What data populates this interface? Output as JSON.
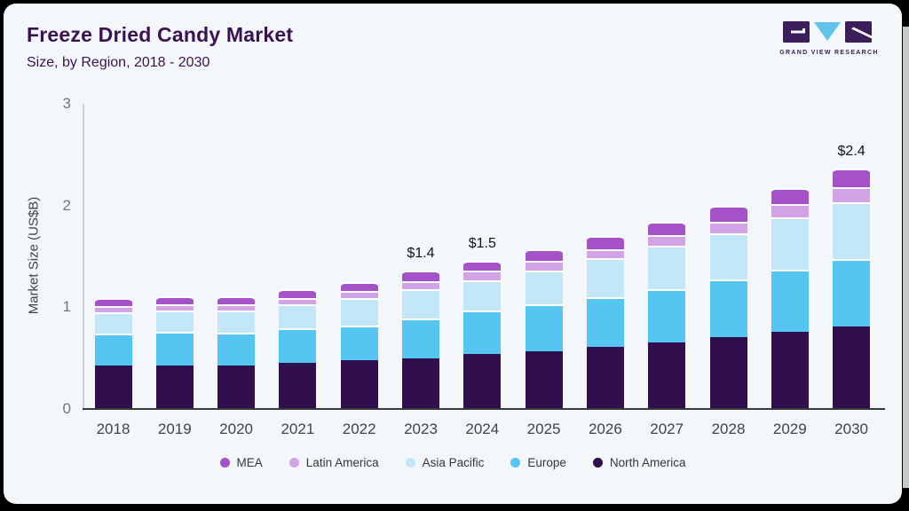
{
  "header": {
    "title": "Freeze Dried Candy Market",
    "subtitle": "Size, by Region, 2018 - 2030",
    "logo_text": "GRAND VIEW RESEARCH"
  },
  "colors": {
    "card_bg": "#f3f7fa",
    "frame": "#000000",
    "title": "#3a1254",
    "logo_purple": "#3b1d5a",
    "logo_blue": "#5fc3ea",
    "axis_line": "#ccd1d6",
    "baseline": "#3b3b3b",
    "tick_text": "#72777f",
    "label_text": "#3e444d"
  },
  "chart_data": {
    "type": "bar",
    "stacked": true,
    "title": "Freeze Dried Candy Market Size, by Region, 2018 - 2030",
    "xlabel": "",
    "ylabel": "Market Size (US$B)",
    "ylim": [
      0,
      3
    ],
    "yticks": [
      0,
      1,
      2,
      3
    ],
    "grid": false,
    "legend_position": "bottom",
    "categories": [
      "2018",
      "2019",
      "2020",
      "2021",
      "2022",
      "2023",
      "2024",
      "2025",
      "2026",
      "2027",
      "2028",
      "2029",
      "2030"
    ],
    "series": [
      {
        "name": "North America",
        "color": "#310e4e",
        "values": [
          0.43,
          0.43,
          0.43,
          0.45,
          0.48,
          0.5,
          0.54,
          0.57,
          0.61,
          0.65,
          0.71,
          0.76,
          0.81
        ]
      },
      {
        "name": "Europe",
        "color": "#55c5f1",
        "values": [
          0.31,
          0.33,
          0.32,
          0.34,
          0.34,
          0.39,
          0.43,
          0.46,
          0.49,
          0.53,
          0.56,
          0.61,
          0.66
        ]
      },
      {
        "name": "Asia Pacific",
        "color": "#c4e7f8",
        "values": [
          0.21,
          0.21,
          0.22,
          0.24,
          0.27,
          0.29,
          0.29,
          0.33,
          0.38,
          0.42,
          0.46,
          0.51,
          0.56
        ]
      },
      {
        "name": "Latin America",
        "color": "#d2a3e5",
        "values": [
          0.06,
          0.06,
          0.06,
          0.06,
          0.07,
          0.08,
          0.1,
          0.1,
          0.09,
          0.11,
          0.11,
          0.13,
          0.15
        ]
      },
      {
        "name": "MEA",
        "color": "#a551c8",
        "values": [
          0.08,
          0.08,
          0.08,
          0.09,
          0.09,
          0.1,
          0.1,
          0.11,
          0.13,
          0.13,
          0.16,
          0.16,
          0.18
        ]
      }
    ],
    "legend_order": [
      "MEA",
      "Latin America",
      "Asia Pacific",
      "Europe",
      "North America"
    ],
    "annotations": [
      {
        "category": "2023",
        "text": "$1.4"
      },
      {
        "category": "2024",
        "text": "$1.5"
      },
      {
        "category": "2030",
        "text": "$2.4"
      }
    ]
  }
}
